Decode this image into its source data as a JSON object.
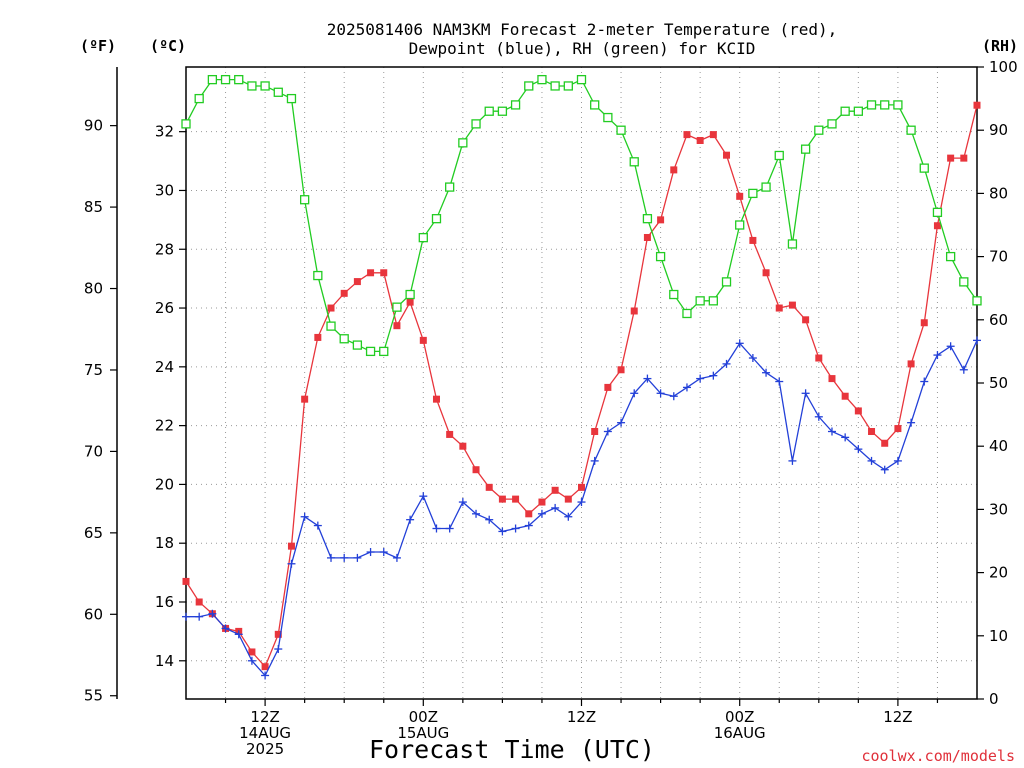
{
  "title_line1": "2025081406 NAM3KM Forecast 2-meter Temperature (red),",
  "title_line2": "Dewpoint (blue), RH (green) for KCID",
  "unit_f": "(ºF)",
  "unit_c": "(ºC)",
  "unit_rh": "(RH)",
  "xlabel": "Forecast Time (UTC)",
  "credit": "coolwx.com/models",
  "colors": {
    "temperature": "#e8353c",
    "dewpoint": "#2340d8",
    "rh": "#22cc22",
    "grid": "#9a9a9a",
    "credit": "#e0303a"
  },
  "chart_data": {
    "type": "line",
    "x_units": "forecast hour from 2025-08-14 06Z",
    "x_range": [
      0,
      60
    ],
    "ylim_c": [
      12.7,
      34.2
    ],
    "ylim_f": [
      54.8,
      93.6
    ],
    "ylim_rh": [
      0,
      100
    ],
    "grid": true,
    "x_ticks": [
      {
        "x": 6,
        "lines": [
          "12Z",
          "14AUG",
          "2025"
        ]
      },
      {
        "x": 18,
        "lines": [
          "00Z",
          "15AUG"
        ]
      },
      {
        "x": 30,
        "lines": [
          "12Z"
        ]
      },
      {
        "x": 42,
        "lines": [
          "00Z",
          "16AUG"
        ]
      },
      {
        "x": 54,
        "lines": [
          "12Z"
        ]
      }
    ],
    "y_ticks_f": [
      "55",
      "60",
      "65",
      "70",
      "75",
      "80",
      "85",
      "90"
    ],
    "y_ticks_c": [
      "14",
      "16",
      "18",
      "20",
      "22",
      "24",
      "26",
      "28",
      "30",
      "32"
    ],
    "y_ticks_rh": [
      "0",
      "10",
      "20",
      "30",
      "40",
      "50",
      "60",
      "70",
      "80",
      "90",
      "100"
    ],
    "series": [
      {
        "name": "Temperature",
        "axis": "C",
        "marker": "filled-square",
        "values": [
          16.7,
          16.0,
          15.6,
          15.1,
          15.0,
          14.3,
          13.8,
          14.9,
          17.9,
          22.9,
          25.0,
          26.0,
          26.5,
          26.9,
          27.2,
          27.2,
          25.4,
          26.2,
          24.9,
          22.9,
          21.7,
          21.3,
          20.5,
          19.9,
          19.5,
          19.5,
          19.0,
          19.4,
          19.8,
          19.5,
          19.9,
          21.8,
          23.3,
          23.9,
          25.9,
          28.4,
          29.0,
          30.7,
          31.9,
          31.7,
          31.9,
          31.2,
          29.8,
          28.3,
          27.2,
          26.0,
          26.1,
          25.6,
          24.3,
          23.6,
          23.0,
          22.5,
          21.8,
          21.4,
          21.9,
          24.1,
          25.5,
          28.8,
          31.1,
          31.1,
          32.9
        ]
      },
      {
        "name": "Dewpoint",
        "axis": "C",
        "marker": "plus",
        "values": [
          15.5,
          15.5,
          15.6,
          15.1,
          14.9,
          14.0,
          13.5,
          14.4,
          17.3,
          18.9,
          18.6,
          17.5,
          17.5,
          17.5,
          17.7,
          17.7,
          17.5,
          18.8,
          19.6,
          18.5,
          18.5,
          19.4,
          19.0,
          18.8,
          18.4,
          18.5,
          18.6,
          19.0,
          19.2,
          18.9,
          19.4,
          20.8,
          21.8,
          22.1,
          23.1,
          23.6,
          23.1,
          23.0,
          23.3,
          23.6,
          23.7,
          24.1,
          24.8,
          24.3,
          23.8,
          23.5,
          20.8,
          23.1,
          22.3,
          21.8,
          21.6,
          21.2,
          20.8,
          20.5,
          20.8,
          22.1,
          23.5,
          24.4,
          24.7,
          23.9,
          24.9
        ]
      },
      {
        "name": "RH",
        "axis": "RH",
        "marker": "open-square",
        "values": [
          91,
          95,
          98,
          98,
          98,
          97,
          97,
          96,
          95,
          79,
          67,
          59,
          57,
          56,
          55,
          55,
          62,
          64,
          73,
          76,
          81,
          88,
          91,
          93,
          93,
          94,
          97,
          98,
          97,
          97,
          98,
          94,
          92,
          90,
          85,
          76,
          70,
          64,
          61,
          63,
          63,
          66,
          75,
          80,
          81,
          86,
          72,
          87,
          90,
          91,
          93,
          93,
          94,
          94,
          94,
          90,
          84,
          77,
          70,
          66,
          63
        ]
      }
    ]
  }
}
